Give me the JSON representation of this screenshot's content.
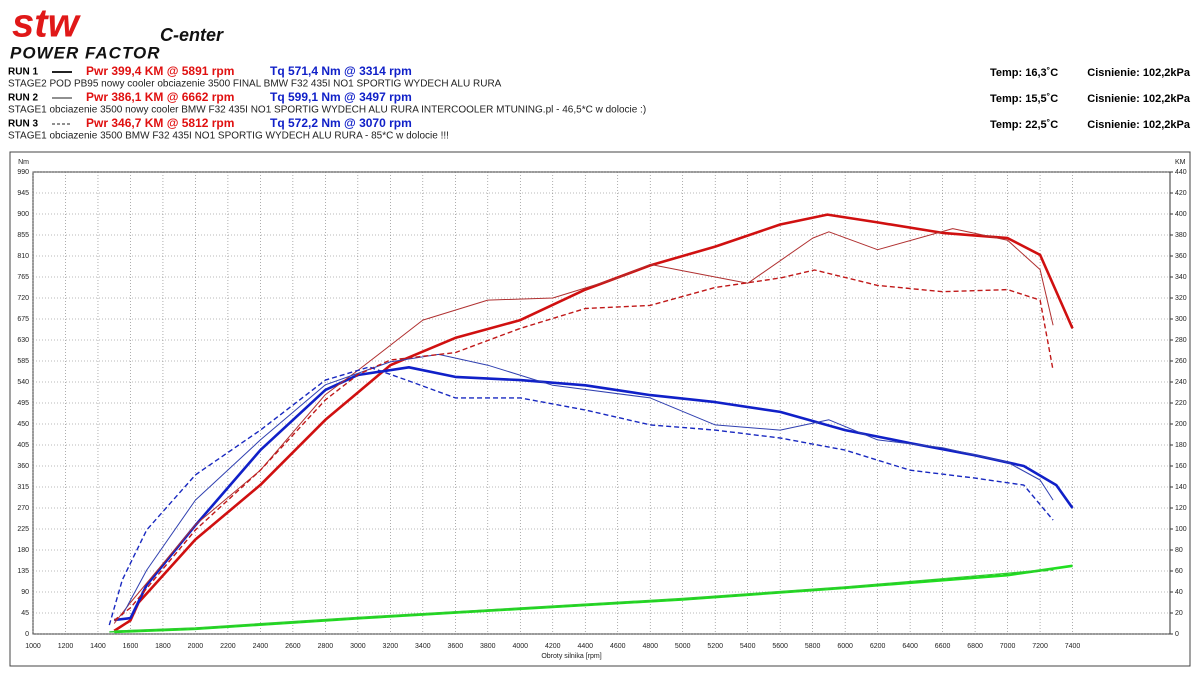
{
  "header": {
    "logo": "stw",
    "logo_sub": "C-enter",
    "logo_bottom": "POWER FACTOR",
    "runs": [
      {
        "label": "RUN 1",
        "pwr": "Pwr  399,4 KM @ 5891 rpm",
        "tq": "Tq  571,4 Nm @ 3314 rpm",
        "desc": "STAGE2 POD PB95 nowy cooler obciazenie 3500 FINAL BMW F32 435I NO1 SPORTIG WYDECH ALU RURA",
        "temp": "Temp: 16,3˚C",
        "pressure": "Cisnienie: 102,2kPa"
      },
      {
        "label": "RUN 2",
        "pwr": "Pwr  386,1 KM @ 6662 rpm",
        "tq": "Tq  599,1 Nm @ 3497 rpm",
        "desc": "STAGE1 obciazenie 3500 nowy cooler BMW F32 435I NO1 SPORTIG WYDECH ALU RURA INTERCOOLER MTUNING.pl - 46,5*C w dolocie :)",
        "temp": "Temp: 15,5˚C",
        "pressure": "Cisnienie: 102,2kPa"
      },
      {
        "label": "RUN 3",
        "pwr": "Pwr  346,7 KM @ 5812 rpm",
        "tq": "Tq  572,2 Nm @ 3070 rpm",
        "desc": "STAGE1 obciazenie 3500 BMW F32 435I NO1 SPORTIG WYDECH ALU RURA - 85*C w dolocie !!!",
        "temp": "Temp: 22,5˚C",
        "pressure": "Cisnienie: 102,2kPa"
      }
    ]
  },
  "chart_data": {
    "type": "line",
    "y_label": "Nm",
    "y2_label": "KM",
    "x_label": "Obroty silnika [rpm]",
    "grid": true,
    "xlim": [
      1000,
      8000
    ],
    "xticks": [
      1000,
      1200,
      1400,
      1600,
      1800,
      2000,
      2200,
      2400,
      2600,
      2800,
      3000,
      3200,
      3400,
      3600,
      3800,
      4000,
      4200,
      4400,
      4600,
      4800,
      5000,
      5200,
      5400,
      5600,
      5800,
      6000,
      6200,
      6400,
      6600,
      6800,
      7000,
      7200,
      7400
    ],
    "ylim": [
      0,
      990
    ],
    "yticks": [
      0,
      45,
      90,
      135,
      180,
      225,
      270,
      315,
      360,
      405,
      450,
      495,
      540,
      585,
      630,
      675,
      720,
      765,
      810,
      855,
      900,
      945,
      990
    ],
    "y2lim": [
      0,
      440
    ],
    "y2ticks": [
      0,
      20,
      40,
      60,
      80,
      100,
      120,
      140,
      160,
      180,
      200,
      220,
      240,
      260,
      280,
      300,
      320,
      340,
      360,
      380,
      400,
      420,
      440
    ],
    "series": [
      {
        "color": "#d01010",
        "style": "thick",
        "axis": "y2",
        "x": [
          1500,
          1600,
          1650,
          2000,
          2400,
          2800,
          3000,
          3200,
          3600,
          4000,
          4400,
          4800,
          5200,
          5600,
          5891,
          6200,
          6600,
          7000,
          7200,
          7400
        ],
        "values": [
          3,
          13,
          30,
          90,
          142,
          204,
          230,
          256,
          282,
          299,
          328,
          351,
          369,
          390,
          399.4,
          392,
          382,
          377,
          361,
          291
        ]
      },
      {
        "color": "#1020c8",
        "style": "thick",
        "x": [
          1500,
          1600,
          1700,
          2000,
          2400,
          2800,
          3000,
          3314,
          3600,
          4000,
          4400,
          4800,
          5200,
          5600,
          6000,
          6400,
          6800,
          7100,
          7300,
          7400
        ],
        "values": [
          30,
          34,
          105,
          233,
          394,
          523,
          555,
          571.4,
          551,
          544,
          533,
          512,
          497,
          476,
          437,
          409,
          383,
          360,
          319,
          270
        ]
      },
      {
        "color": "#b03030",
        "style": "thin",
        "axis": "y2",
        "x": [
          1500,
          1600,
          2000,
          2400,
          2800,
          3000,
          3400,
          3800,
          4200,
          4600,
          4800,
          5000,
          5400,
          5800,
          5900,
          6200,
          6662,
          7000,
          7200,
          7280
        ],
        "values": [
          10,
          30,
          104,
          156,
          228,
          251,
          299,
          318,
          320,
          339,
          352,
          346,
          334,
          377,
          383,
          366,
          386.1,
          375,
          347,
          294
        ]
      },
      {
        "color": "#3040b0",
        "style": "thin",
        "x": [
          1550,
          1700,
          2000,
          2400,
          2800,
          3200,
          3497,
          3800,
          4200,
          4800,
          5200,
          5600,
          5900,
          6200,
          6600,
          7000,
          7200,
          7280
        ],
        "values": [
          40,
          137,
          287,
          416,
          534,
          583,
          599.1,
          576,
          533,
          506,
          448,
          437,
          459,
          416,
          399,
          368,
          330,
          287
        ]
      },
      {
        "color": "#c01818",
        "style": "dashed",
        "axis": "y2",
        "x": [
          1500,
          1600,
          2000,
          2400,
          2800,
          3000,
          3200,
          3600,
          4000,
          4400,
          4800,
          5200,
          5600,
          5812,
          6200,
          6600,
          7000,
          7200,
          7280
        ],
        "values": [
          13,
          25,
          99,
          156,
          223,
          247,
          261,
          268,
          291,
          310,
          313,
          330,
          339,
          346.7,
          332,
          326,
          328,
          318,
          251
        ]
      },
      {
        "color": "#1828c0",
        "style": "dashed",
        "x": [
          1470,
          1550,
          1700,
          2000,
          2400,
          2800,
          3070,
          3300,
          3600,
          4000,
          4400,
          4800,
          5200,
          5600,
          6000,
          6400,
          6800,
          7100,
          7280
        ],
        "values": [
          19,
          116,
          223,
          341,
          437,
          544,
          572.2,
          544,
          506,
          506,
          480,
          448,
          437,
          420,
          394,
          351,
          334,
          319,
          244
        ]
      },
      {
        "color": "#20e020",
        "style": "thick",
        "axis": "y2",
        "x": [
          1500,
          2000,
          3000,
          4000,
          5000,
          6000,
          7000,
          7400
        ],
        "values": [
          2,
          5,
          15,
          24,
          33,
          44,
          56,
          65
        ]
      },
      {
        "color": "#30d030",
        "style": "thin",
        "axis": "y2",
        "x": [
          1500,
          2000,
          3000,
          4000,
          5000,
          6000,
          7000,
          7280
        ],
        "values": [
          3,
          6,
          16,
          25,
          34,
          45,
          58,
          62
        ]
      },
      {
        "color": "#28c828",
        "style": "dashed",
        "axis": "y2",
        "x": [
          1470,
          2000,
          3000,
          4000,
          5000,
          6000,
          7000,
          7280
        ],
        "values": [
          2,
          5,
          15,
          24,
          33,
          44,
          57,
          61
        ]
      }
    ]
  }
}
